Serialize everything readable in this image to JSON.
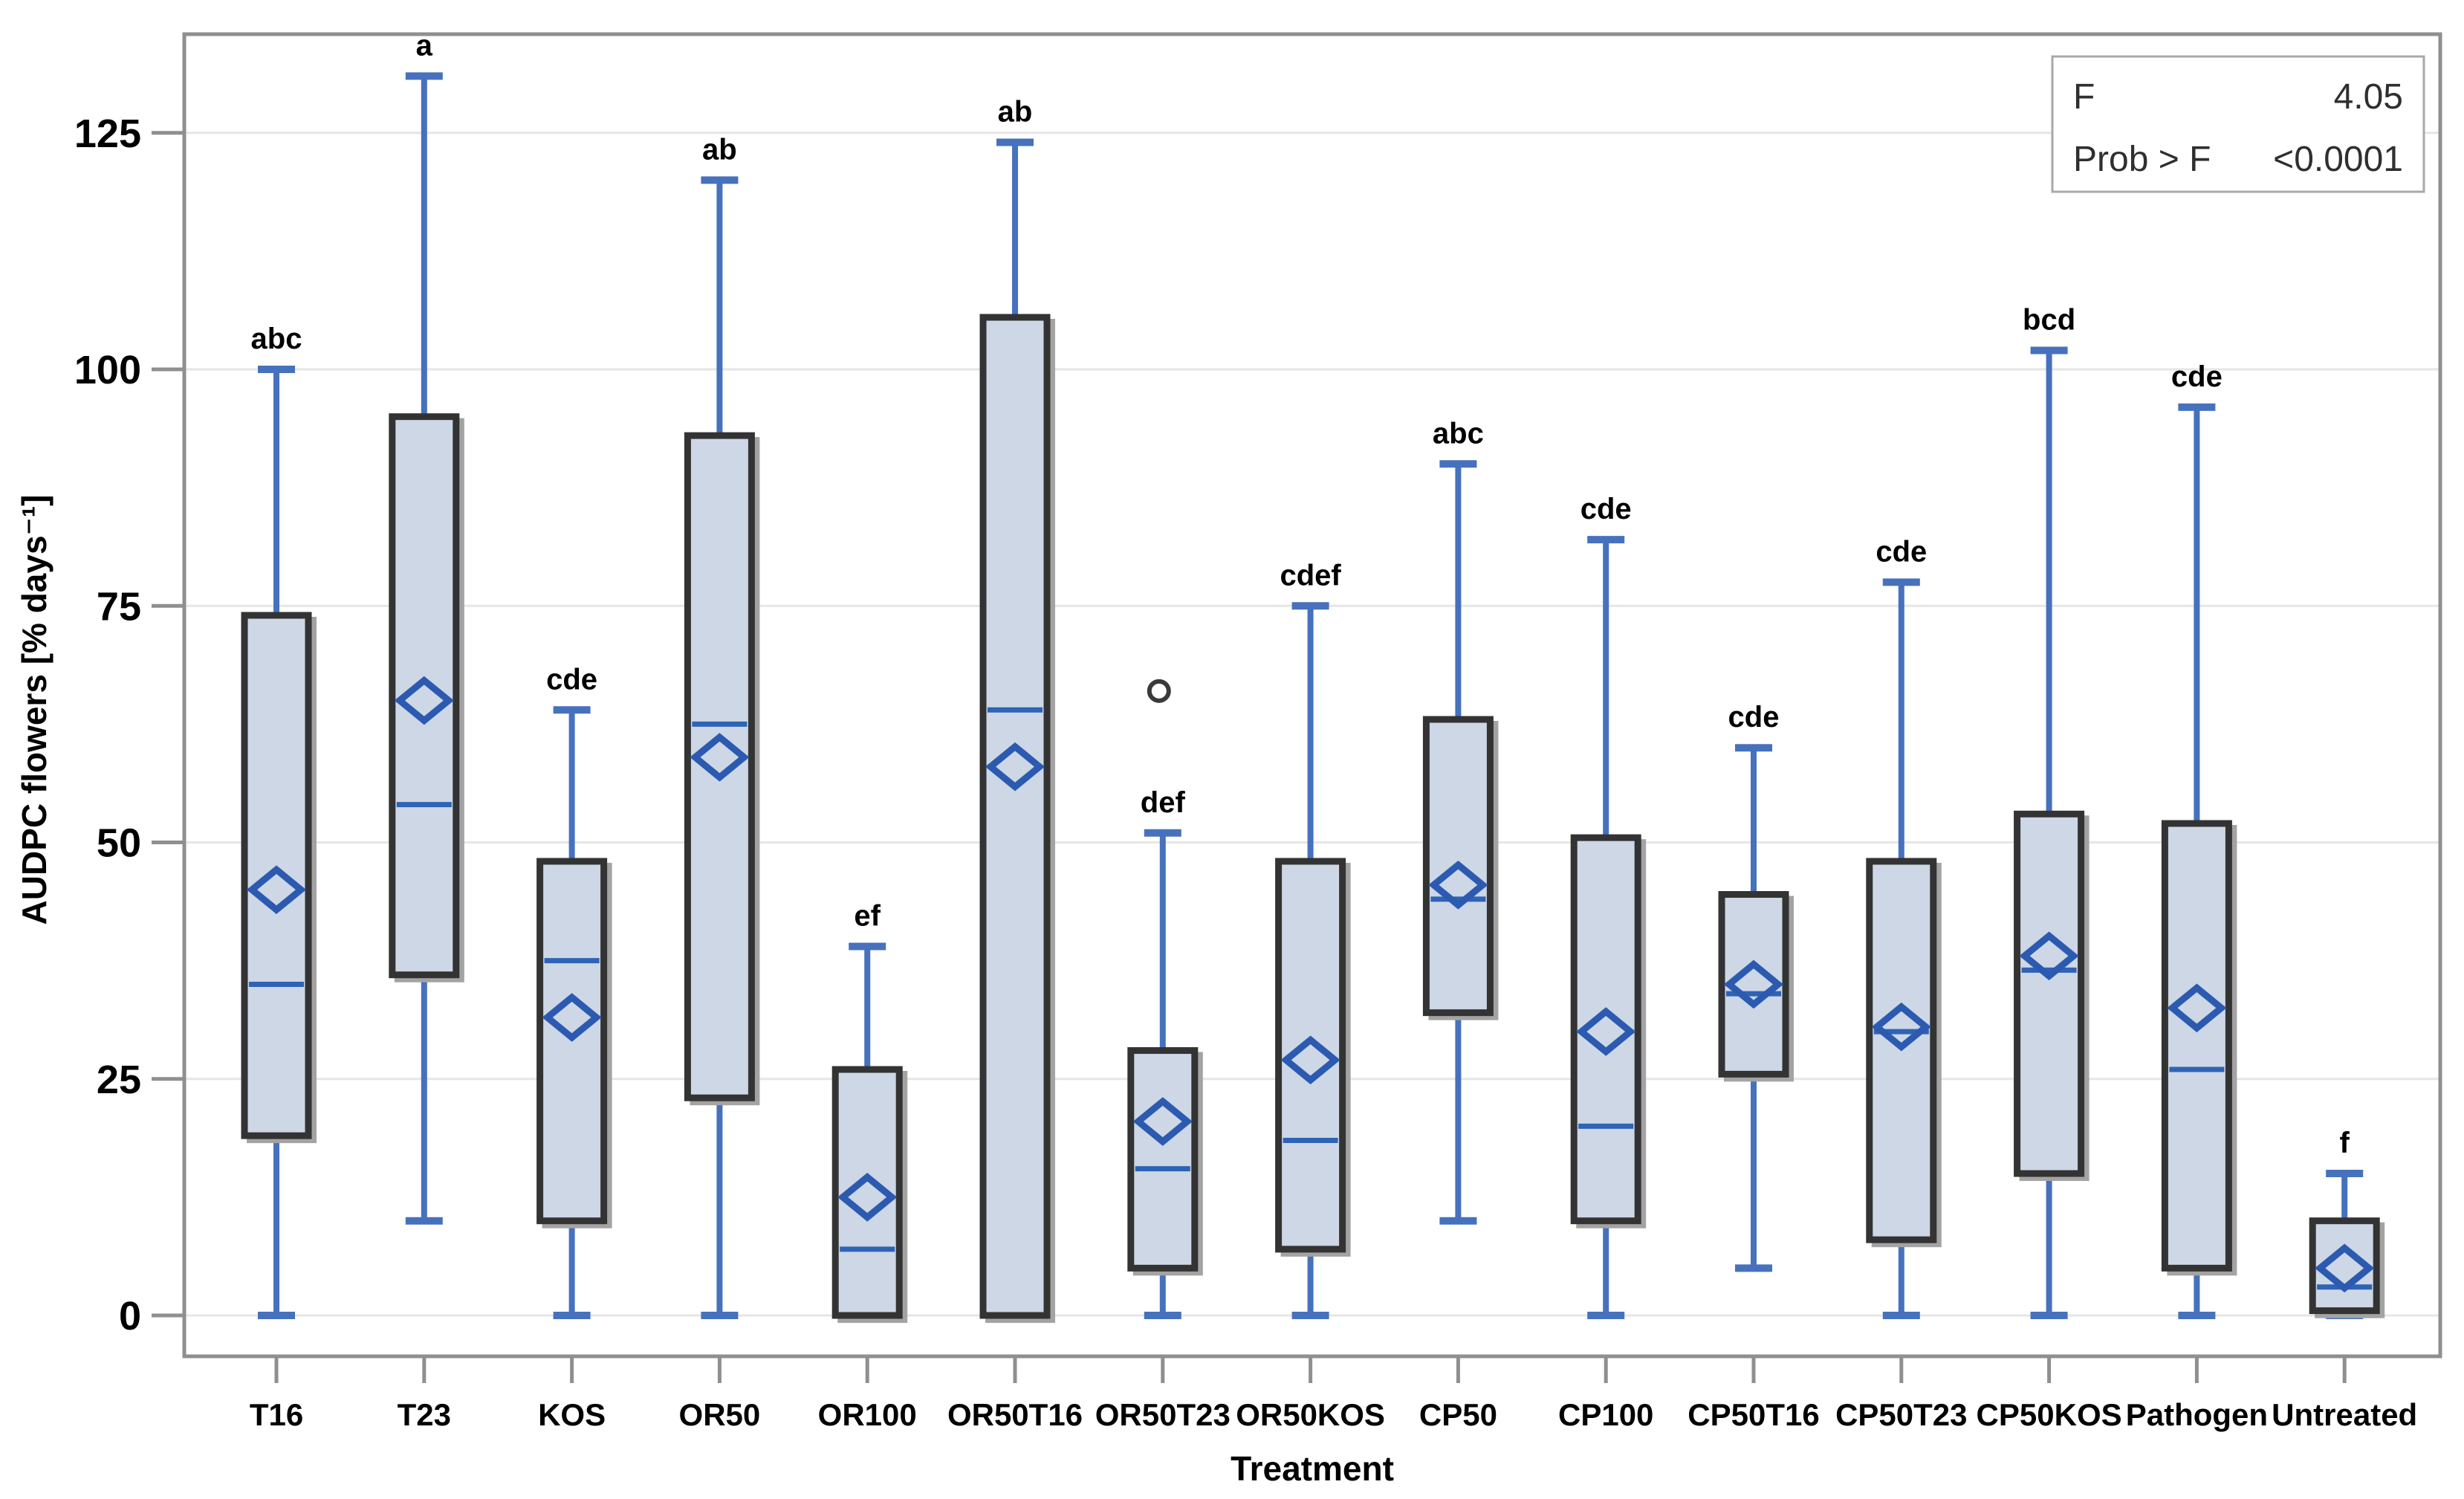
{
  "figure": {
    "stats_box": {
      "f_label": "F",
      "f_value": "4.05",
      "prob_label": "Prob > F",
      "prob_value": "<0.0001"
    },
    "x_axis_title": "Treatment",
    "y_axis_title": "AUDPC flowers [% days⁻¹]"
  },
  "chart_data": {
    "type": "box",
    "title": "",
    "xlabel": "Treatment",
    "ylabel": "AUDPC flowers [% days⁻¹]",
    "ylim": [
      0,
      135
    ],
    "yticks": [
      0,
      25,
      50,
      75,
      100,
      125
    ],
    "grid": "horizontal",
    "legend_position": "none",
    "annotation_box": {
      "F": "4.05",
      "Prob > F": "<0.0001"
    },
    "categories": [
      "T16",
      "T23",
      "KOS",
      "OR50",
      "OR100",
      "OR50T16",
      "OR50T23",
      "OR50KOS",
      "CP50",
      "CP100",
      "CP50T16",
      "CP50T23",
      "CP50KOS",
      "Pathogen",
      "Untreated"
    ],
    "series": [
      {
        "category": "T16",
        "letter": "abc",
        "min": 0,
        "q1": 19,
        "median": 35,
        "q3": 74,
        "max": 100,
        "mean": 45,
        "outliers": []
      },
      {
        "category": "T23",
        "letter": "a",
        "min": 10,
        "q1": 36,
        "median": 54,
        "q3": 95,
        "max": 131,
        "mean": 65,
        "outliers": []
      },
      {
        "category": "KOS",
        "letter": "cde",
        "min": 0,
        "q1": 10,
        "median": 37.5,
        "q3": 48,
        "max": 64,
        "mean": 31.5,
        "outliers": []
      },
      {
        "category": "OR50",
        "letter": "ab",
        "min": 0,
        "q1": 23,
        "median": 62.5,
        "q3": 93,
        "max": 120,
        "mean": 59,
        "outliers": []
      },
      {
        "category": "OR100",
        "letter": "ef",
        "min": 0,
        "q1": 0,
        "median": 7,
        "q3": 26,
        "max": 39,
        "mean": 12.5,
        "outliers": []
      },
      {
        "category": "OR50T16",
        "letter": "ab",
        "min": 0,
        "q1": 0,
        "median": 64,
        "q3": 105.5,
        "max": 124,
        "mean": 58,
        "outliers": []
      },
      {
        "category": "OR50T23",
        "letter": "def",
        "min": 0,
        "q1": 5,
        "median": 15.5,
        "q3": 28,
        "max": 51,
        "mean": 20.5,
        "outliers": [
          66
        ]
      },
      {
        "category": "OR50KOS",
        "letter": "cdef",
        "min": 0,
        "q1": 7,
        "median": 18.5,
        "q3": 48,
        "max": 75,
        "mean": 27,
        "outliers": []
      },
      {
        "category": "CP50",
        "letter": "abc",
        "min": 10,
        "q1": 32,
        "median": 44,
        "q3": 63,
        "max": 90,
        "mean": 45.5,
        "outliers": []
      },
      {
        "category": "CP100",
        "letter": "cde",
        "min": 0,
        "q1": 10,
        "median": 20,
        "q3": 50.5,
        "max": 82,
        "mean": 30,
        "outliers": []
      },
      {
        "category": "CP50T16",
        "letter": "cde",
        "min": 5,
        "q1": 25.5,
        "median": 34,
        "q3": 44.5,
        "max": 60,
        "mean": 35,
        "outliers": []
      },
      {
        "category": "CP50T23",
        "letter": "cde",
        "min": 0,
        "q1": 8,
        "median": 30,
        "q3": 48,
        "max": 77.5,
        "mean": 30.5,
        "outliers": []
      },
      {
        "category": "CP50KOS",
        "letter": "bcd",
        "min": 0,
        "q1": 15,
        "median": 36.5,
        "q3": 53,
        "max": 102,
        "mean": 38,
        "outliers": []
      },
      {
        "category": "Pathogen",
        "letter": "cde",
        "min": 0,
        "q1": 5,
        "median": 26,
        "q3": 52,
        "max": 96,
        "mean": 32.5,
        "outliers": []
      },
      {
        "category": "Untreated",
        "letter": "f",
        "min": 0,
        "q1": 0.5,
        "median": 3,
        "q3": 10,
        "max": 15,
        "mean": 5,
        "outliers": []
      }
    ]
  },
  "colors": {
    "background": "#ffffff",
    "box_fill": "#cdd7e6",
    "box_border": "#333333",
    "box_shadow": "#a3a3a3",
    "whisker": "#4671bd",
    "median": "#2e63b5",
    "mean_diamond": "#2c5ab0",
    "outlier": "#3a3a3a",
    "gridline": "#e6e6e6",
    "frame": "#8f8f8f",
    "tick": "#8f8f8f",
    "text": "#000000",
    "stats_border": "#a8a8a8",
    "stats_text": "#2f2f2f"
  }
}
